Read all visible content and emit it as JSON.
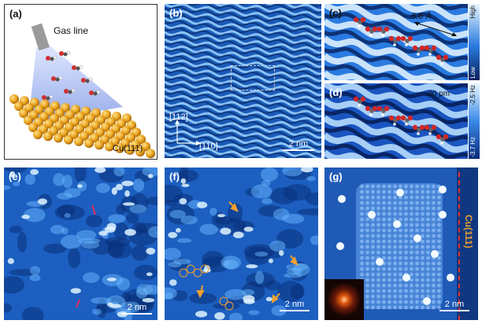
{
  "panels": {
    "a": {
      "label": "(a)",
      "gas_line": "Gas line",
      "substrate": "Cu(111)"
    },
    "b": {
      "label": "(b)",
      "dir1": "[112]",
      "dir2": "[110]",
      "scale": "2 nm"
    },
    "c": {
      "label": "(c)",
      "distance": "6.6 Å",
      "cbar_high": "High",
      "cbar_low": "Low"
    },
    "d": {
      "label": "(d)",
      "z_offset": "-20 pm",
      "cbar_high": "-2.5 Hz",
      "cbar_low": "-3.7 Hz"
    },
    "e": {
      "label": "(e)",
      "scale": "2 nm"
    },
    "f": {
      "label": "(f)",
      "scale": "2 nm"
    },
    "g": {
      "label": "(g)",
      "substrate": "Cu(111)",
      "scale": "2 nm"
    }
  },
  "colors": {
    "stm_dark": "#0a2a6a",
    "stm_mid": "#1f6fd1",
    "stm_light": "#bfe6ff",
    "copper": "#e8a21c",
    "arrow": "#f0a030",
    "cu_line": "#e03030",
    "cu_text": "#e8a030"
  }
}
